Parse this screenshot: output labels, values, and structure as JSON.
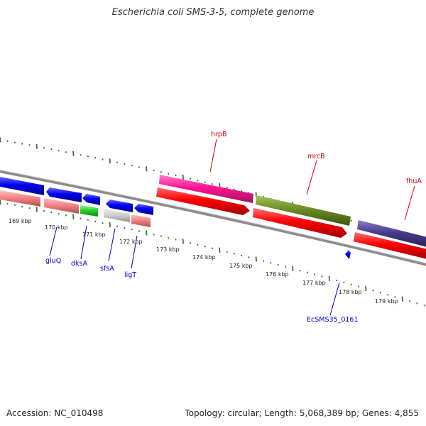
{
  "title": "Escherichia coli SMS-3-5, complete genome",
  "accession": "Accession: NC_010498",
  "summary": "Topology: circular; Length: 5,068,389 bp; Genes: 4,855",
  "ruler": [
    "169 kbp",
    "170 kbp",
    "171 kbp",
    "172 kbp",
    "173 kbp",
    "174 kbp",
    "175 kbp",
    "176 kbp",
    "177 kbp",
    "178 kbp",
    "179 kbp"
  ],
  "genes": [
    {
      "name": "gluQ"
    },
    {
      "name": "dksA"
    },
    {
      "name": "sfsA"
    },
    {
      "name": "ligT"
    },
    {
      "name": "EcSMS35_0161"
    },
    {
      "name": "hrpB"
    },
    {
      "name": "mrcB"
    },
    {
      "name": "fhuA"
    }
  ],
  "colors": {
    "forward_cds": "#ff0000",
    "reverse_cds": "#0000ee",
    "rna": "#33cc33",
    "hrpB": "#ff1493",
    "mrcB": "#6b8e23",
    "fhuA": "#483d8b",
    "label_forward": "#cc0000",
    "label_reverse": "#0000cc",
    "tick": "#2e7d1e"
  }
}
